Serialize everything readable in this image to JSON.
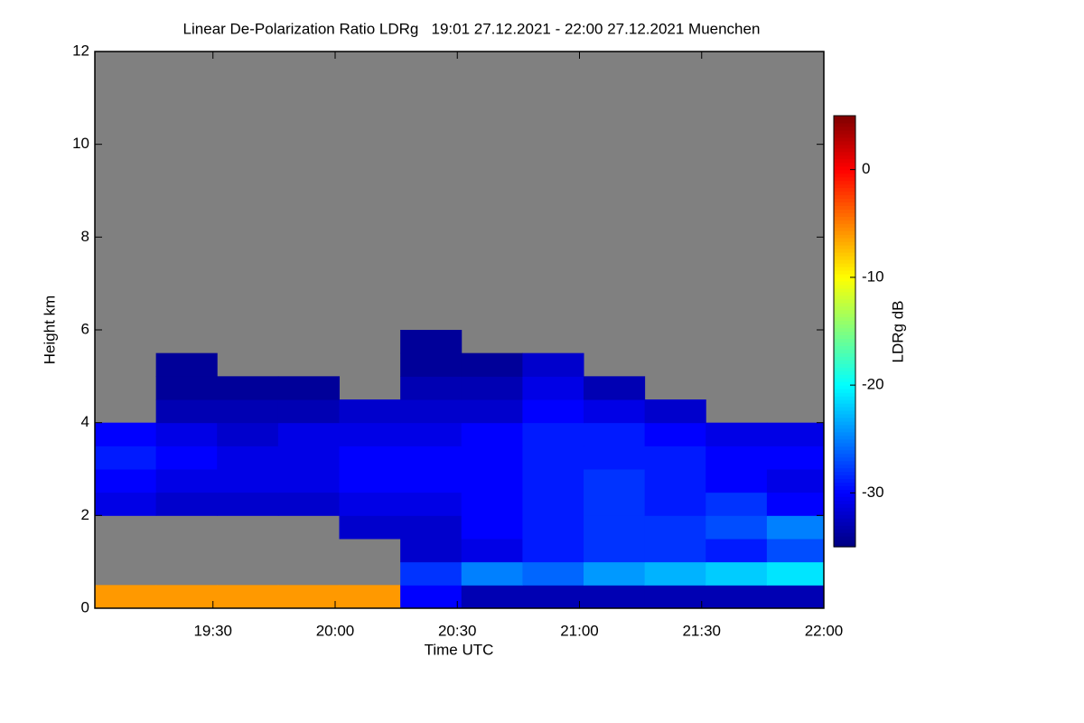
{
  "chart_data": {
    "type": "heatmap",
    "title": "Linear De-Polarization Ratio LDRg   19:01 27.12.2021 - 22:00 27.12.2021 Muenchen",
    "xlabel": "Time UTC",
    "ylabel": "Height km",
    "colorbar_label": "LDRg dB",
    "colormap": "jet",
    "missing_color": "#808080",
    "xlim": [
      1141,
      1320
    ],
    "xticks": [
      {
        "value": 1170,
        "label": "19:30"
      },
      {
        "value": 1200,
        "label": "20:00"
      },
      {
        "value": 1230,
        "label": "20:30"
      },
      {
        "value": 1260,
        "label": "21:00"
      },
      {
        "value": 1290,
        "label": "21:30"
      },
      {
        "value": 1320,
        "label": "22:00"
      }
    ],
    "ylim": [
      0,
      12
    ],
    "yticks": [
      0,
      2,
      4,
      6,
      8,
      10,
      12
    ],
    "zlim": [
      -35,
      5
    ],
    "zticks": [
      0,
      -10,
      -20,
      -30
    ],
    "x_bins": [
      1141,
      1156,
      1171,
      1186,
      1201,
      1216,
      1231,
      1246,
      1261,
      1276,
      1291,
      1306,
      1320
    ],
    "y_bins": [
      0,
      0.5,
      1,
      1.5,
      2,
      2.5,
      3,
      3.5,
      4,
      4.5,
      5,
      5.5,
      6
    ],
    "values": [
      [
        -6,
        -6,
        -6,
        -6,
        -6,
        -30,
        -33,
        -33,
        -33,
        -33,
        -33,
        -33
      ],
      [
        null,
        null,
        null,
        null,
        null,
        -28,
        -25,
        -26,
        -24,
        -23,
        -22,
        -21
      ],
      [
        null,
        null,
        null,
        null,
        null,
        -32,
        -31,
        -29,
        -28,
        -28,
        -29,
        -27
      ],
      [
        null,
        null,
        null,
        null,
        -32,
        -32,
        -30,
        -29,
        -28,
        -28,
        -27,
        -25
      ],
      [
        -31,
        -32,
        -32,
        -32,
        -31,
        -31,
        -30,
        -29,
        -28,
        -29,
        -28,
        -30
      ],
      [
        -30,
        -31,
        -31,
        -31,
        -30,
        -30,
        -30,
        -29,
        -28,
        -29,
        -30,
        -31
      ],
      [
        -29,
        -30,
        -31,
        -31,
        -30,
        -30,
        -30,
        -29,
        -29,
        -29,
        -30,
        -30
      ],
      [
        -30,
        -31,
        -32,
        -31,
        -31,
        -31,
        -30,
        -29,
        -29,
        -30,
        -31,
        -31
      ],
      [
        null,
        -33,
        -33,
        -33,
        -32,
        -32,
        -32,
        -30,
        -31,
        -32,
        null,
        null
      ],
      [
        null,
        -34,
        -34,
        -34,
        null,
        -33,
        -33,
        -31,
        -33,
        null,
        null,
        null
      ],
      [
        null,
        -34,
        null,
        null,
        null,
        -34,
        -34,
        -32,
        null,
        null,
        null,
        null
      ],
      [
        null,
        null,
        null,
        null,
        null,
        -34,
        null,
        null,
        null,
        null,
        null,
        null
      ]
    ]
  }
}
